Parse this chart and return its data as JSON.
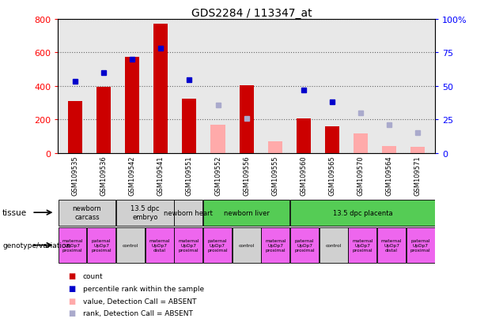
{
  "title": "GDS2284 / 113347_at",
  "samples": [
    "GSM109535",
    "GSM109536",
    "GSM109542",
    "GSM109541",
    "GSM109551",
    "GSM109552",
    "GSM109556",
    "GSM109555",
    "GSM109560",
    "GSM109565",
    "GSM109570",
    "GSM109564",
    "GSM109571"
  ],
  "count_values": [
    310,
    395,
    575,
    770,
    325,
    null,
    405,
    null,
    205,
    160,
    null,
    null,
    null
  ],
  "count_absent": [
    null,
    null,
    null,
    null,
    null,
    170,
    null,
    70,
    null,
    null,
    115,
    40,
    35
  ],
  "rank_values": [
    425,
    480,
    560,
    625,
    435,
    null,
    null,
    null,
    375,
    305,
    null,
    null,
    null
  ],
  "rank_absent": [
    null,
    null,
    null,
    null,
    null,
    285,
    205,
    null,
    null,
    null,
    240,
    170,
    120
  ],
  "ylim_left": [
    0,
    800
  ],
  "ylim_right": [
    0,
    100
  ],
  "yticks_left": [
    0,
    200,
    400,
    600,
    800
  ],
  "yticks_right": [
    0,
    25,
    50,
    75,
    100
  ],
  "ytick_right_labels": [
    "0",
    "25",
    "50",
    "75",
    "100%"
  ],
  "tissues": [
    {
      "label": "newborn\ncarcass",
      "start": 0,
      "end": 2,
      "color": "#d0d0d0"
    },
    {
      "label": "13.5 dpc\nembryo",
      "start": 2,
      "end": 4,
      "color": "#d0d0d0"
    },
    {
      "label": "newborn heart",
      "start": 4,
      "end": 5,
      "color": "#d0d0d0"
    },
    {
      "label": "newborn liver",
      "start": 5,
      "end": 8,
      "color": "#55cc55"
    },
    {
      "label": "13.5 dpc placenta",
      "start": 8,
      "end": 13,
      "color": "#55cc55"
    }
  ],
  "genotypes": [
    {
      "label": "maternal\nUpDp7\nproximal",
      "start": 0,
      "end": 1,
      "color": "#ee66ee"
    },
    {
      "label": "paternal\nUpDp7\nproximal",
      "start": 1,
      "end": 2,
      "color": "#ee66ee"
    },
    {
      "label": "control",
      "start": 2,
      "end": 3,
      "color": "#d0d0d0"
    },
    {
      "label": "maternal\nUpDp7\ndistal",
      "start": 3,
      "end": 4,
      "color": "#ee66ee"
    },
    {
      "label": "maternal\nUpDp7\nproximal",
      "start": 4,
      "end": 5,
      "color": "#ee66ee"
    },
    {
      "label": "paternal\nUpDp7\nproximal",
      "start": 5,
      "end": 6,
      "color": "#ee66ee"
    },
    {
      "label": "control",
      "start": 6,
      "end": 7,
      "color": "#d0d0d0"
    },
    {
      "label": "maternal\nUpDp7\nproximal",
      "start": 7,
      "end": 8,
      "color": "#ee66ee"
    },
    {
      "label": "paternal\nUpDp7\nproximal",
      "start": 8,
      "end": 9,
      "color": "#ee66ee"
    },
    {
      "label": "control",
      "start": 9,
      "end": 10,
      "color": "#d0d0d0"
    },
    {
      "label": "maternal\nUpDp7\nproximal",
      "start": 10,
      "end": 11,
      "color": "#ee66ee"
    },
    {
      "label": "maternal\nUpDp7\ndistal",
      "start": 11,
      "end": 12,
      "color": "#ee66ee"
    },
    {
      "label": "paternal\nUpDp7\nproximal",
      "start": 12,
      "end": 13,
      "color": "#ee66ee"
    }
  ],
  "bar_color_red": "#cc0000",
  "bar_color_blue": "#0000cc",
  "bar_color_pink": "#ffaaaa",
  "bar_color_light_blue": "#aaaacc",
  "background_color": "#ffffff",
  "axis_bg": "#e8e8e8",
  "grid_color": "#666666"
}
